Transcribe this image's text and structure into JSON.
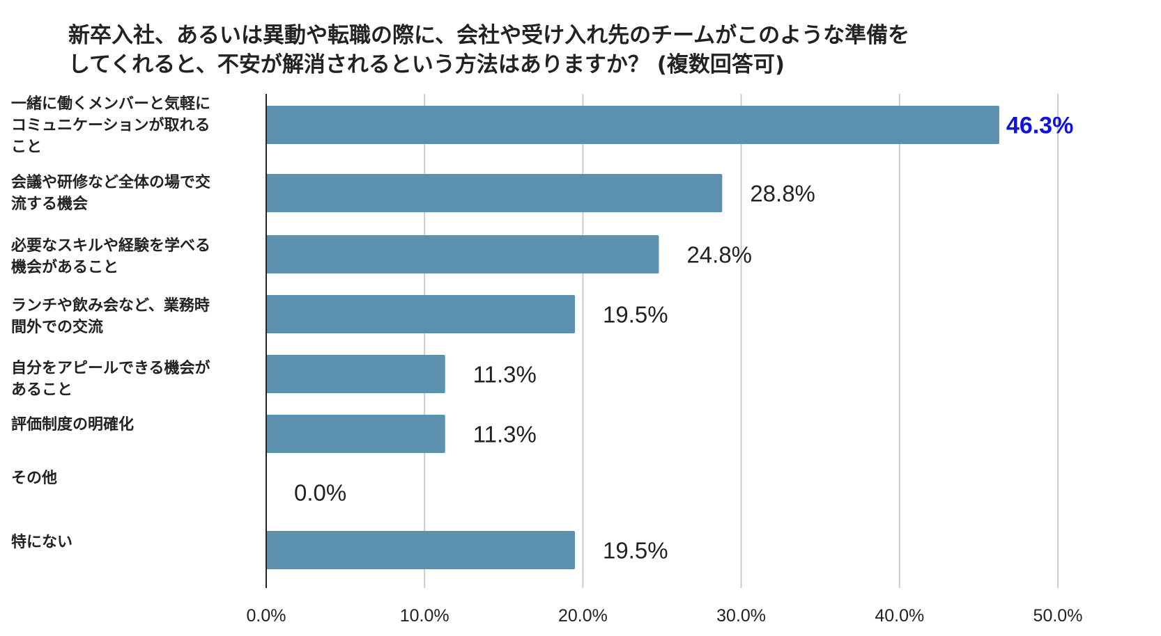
{
  "chart_data": {
    "type": "bar",
    "orientation": "horizontal",
    "title_lines": [
      "新卒入社、あるいは異動や転職の際に、会社や受け入れ先のチームがこのような準備を",
      "してくれると、不安が解消されるという方法はありますか？ (複数回答可)"
    ],
    "categories": [
      [
        "一緒に働くメンバーと気軽に",
        "コミュニケーションが取れる",
        "こと"
      ],
      [
        "会議や研修など全体の場で交",
        "流する機会"
      ],
      [
        "必要なスキルや経験を学べる",
        "機会があること"
      ],
      [
        "ランチや飲み会など、業務時",
        "間外での交流"
      ],
      [
        "自分をアピールできる機会が",
        "あること"
      ],
      [
        "評価制度の明確化"
      ],
      [
        "その他"
      ],
      [
        "特にない"
      ]
    ],
    "values": [
      46.3,
      28.8,
      24.8,
      19.5,
      11.3,
      11.3,
      0.0,
      19.5
    ],
    "value_labels": [
      "46.3%",
      "28.8%",
      "24.8%",
      "19.5%",
      "11.3%",
      "11.3%",
      "0.0%",
      "19.5%"
    ],
    "highlight_index": 0,
    "xlim": [
      0,
      50
    ],
    "x_ticks": [
      0,
      10,
      20,
      30,
      40,
      50
    ],
    "x_tick_labels": [
      "0.0%",
      "10.0%",
      "20.0%",
      "30.0%",
      "40.0%",
      "50.0%"
    ],
    "grid": true,
    "legend": "none",
    "colors": {
      "bar": "#5b91ae",
      "highlight_label": "#1010e0",
      "label": "#222222",
      "grid": "#cccccc",
      "axis": "#222222"
    }
  }
}
